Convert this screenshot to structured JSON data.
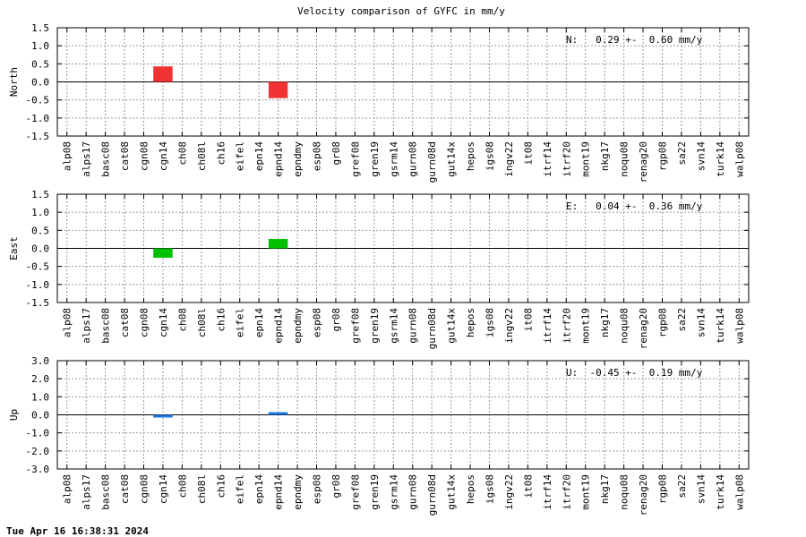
{
  "title": "Velocity comparison of GYFC in mm/y",
  "timestamp": "Tue Apr 16 16:38:31 2024",
  "chart_data": [
    {
      "type": "bar",
      "ylabel": "North",
      "annotation": "N:   0.29 +-  0.60 mm/y",
      "categories": [
        "alp08",
        "alps17",
        "basc08",
        "cat08",
        "cgn08",
        "cgn14",
        "ch08",
        "ch08l",
        "ch16",
        "eifel",
        "epn14",
        "epnd14",
        "epndmy",
        "esp08",
        "gr08",
        "gref08",
        "gren19",
        "gsrm14",
        "gurn08",
        "gurn08d",
        "gut14x",
        "hepos",
        "igs08",
        "ingv22",
        "it08",
        "itrf14",
        "itrf20",
        "mont19",
        "nkg17",
        "noqu08",
        "renag20",
        "rgp08",
        "sa22",
        "svn14",
        "turk14",
        "walp08"
      ],
      "values": [
        null,
        null,
        null,
        null,
        null,
        0.43,
        null,
        null,
        null,
        null,
        null,
        -0.45,
        null,
        null,
        null,
        null,
        null,
        null,
        null,
        null,
        null,
        null,
        null,
        null,
        null,
        null,
        null,
        null,
        null,
        null,
        null,
        null,
        null,
        null,
        null,
        null
      ],
      "color": "#f03232",
      "ylim": [
        -1.5,
        1.5
      ],
      "yticks": [
        1.5,
        {
          "value": 1,
          "label": "1.0"
        },
        0.5,
        {
          "value": 0,
          "label": "0.0"
        },
        -0.5,
        {
          "value": -1,
          "label": "-1.0"
        },
        -1.5
      ],
      "grid": true
    },
    {
      "type": "bar",
      "ylabel": "East",
      "annotation": "E:   0.04 +-  0.36 mm/y",
      "categories": [
        "alp08",
        "alps17",
        "basc08",
        "cat08",
        "cgn08",
        "cgn14",
        "ch08",
        "ch08l",
        "ch16",
        "eifel",
        "epn14",
        "epnd14",
        "epndmy",
        "esp08",
        "gr08",
        "gref08",
        "gren19",
        "gsrm14",
        "gurn08",
        "gurn08d",
        "gut14x",
        "hepos",
        "igs08",
        "ingv22",
        "it08",
        "itrf14",
        "itrf20",
        "mont19",
        "nkg17",
        "noqu08",
        "renag20",
        "rgp08",
        "sa22",
        "svn14",
        "turk14",
        "walp08"
      ],
      "values": [
        null,
        null,
        null,
        null,
        null,
        -0.26,
        null,
        null,
        null,
        null,
        null,
        0.26,
        null,
        null,
        null,
        null,
        null,
        null,
        null,
        null,
        null,
        null,
        null,
        null,
        null,
        null,
        null,
        null,
        null,
        null,
        null,
        null,
        null,
        null,
        null,
        null
      ],
      "color": "#00c000",
      "ylim": [
        -1.5,
        1.5
      ],
      "yticks": [
        1.5,
        {
          "value": 1,
          "label": "1.0"
        },
        0.5,
        {
          "value": 0,
          "label": "0.0"
        },
        -0.5,
        {
          "value": -1,
          "label": "-1.0"
        },
        -1.5
      ],
      "grid": true
    },
    {
      "type": "bar",
      "ylabel": "Up",
      "annotation": "U:  -0.45 +-  0.19 mm/y",
      "categories": [
        "alp08",
        "alps17",
        "basc08",
        "cat08",
        "cgn08",
        "cgn14",
        "ch08",
        "ch08l",
        "ch16",
        "eifel",
        "epn14",
        "epnd14",
        "epndmy",
        "esp08",
        "gr08",
        "gref08",
        "gren19",
        "gsrm14",
        "gurn08",
        "gurn08d",
        "gut14x",
        "hepos",
        "igs08",
        "ingv22",
        "it08",
        "itrf14",
        "itrf20",
        "mont19",
        "nkg17",
        "noqu08",
        "renag20",
        "rgp08",
        "sa22",
        "svn14",
        "turk14",
        "walp08"
      ],
      "values": [
        null,
        null,
        null,
        null,
        null,
        -0.15,
        null,
        null,
        null,
        null,
        null,
        0.15,
        null,
        null,
        null,
        null,
        null,
        null,
        null,
        null,
        null,
        null,
        null,
        null,
        null,
        null,
        null,
        null,
        null,
        null,
        null,
        null,
        null,
        null,
        null,
        null
      ],
      "color": "#1e78e0",
      "ylim": [
        -3,
        3
      ],
      "yticks": [
        {
          "value": 3,
          "label": "3.0"
        },
        {
          "value": 2,
          "label": "2.0"
        },
        {
          "value": 1,
          "label": "1.0"
        },
        {
          "value": 0,
          "label": "0.0"
        },
        {
          "value": -1,
          "label": "-1.0"
        },
        {
          "value": -2,
          "label": "-2.0"
        },
        {
          "value": -3,
          "label": "-3.0"
        }
      ],
      "grid": true
    }
  ]
}
